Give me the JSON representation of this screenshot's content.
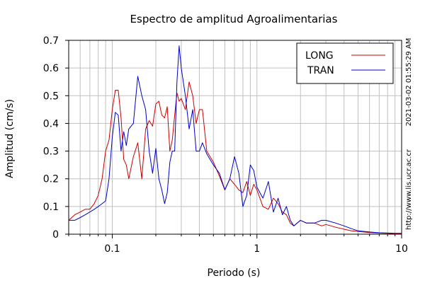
{
  "chart_data": {
    "type": "line",
    "title": "Espectro de amplitud Agroalimentarias",
    "xlabel": "Periodo (s)",
    "ylabel": "Amplitud (cm/s)",
    "xscale": "log",
    "xlim": [
      0.05,
      10
    ],
    "ylim": [
      0,
      0.7
    ],
    "x_ticks": [
      {
        "value": 0.1,
        "label": "0.1"
      },
      {
        "value": 1,
        "label": "1"
      },
      {
        "value": 10,
        "label": "10"
      }
    ],
    "y_ticks": [
      {
        "value": 0,
        "label": "0"
      },
      {
        "value": 0.1,
        "label": "0.1"
      },
      {
        "value": 0.2,
        "label": "0.2"
      },
      {
        "value": 0.3,
        "label": "0.3"
      },
      {
        "value": 0.4,
        "label": "0.4"
      },
      {
        "value": 0.5,
        "label": "0.5"
      },
      {
        "value": 0.6,
        "label": "0.6"
      },
      {
        "value": 0.7,
        "label": "0.7"
      }
    ],
    "grid": true,
    "legend_position": "top-right",
    "series": [
      {
        "name": "LONG",
        "color": "#cc0000",
        "x": [
          0.05,
          0.055,
          0.06,
          0.065,
          0.07,
          0.075,
          0.08,
          0.085,
          0.09,
          0.095,
          0.1,
          0.105,
          0.11,
          0.115,
          0.12,
          0.125,
          0.13,
          0.14,
          0.15,
          0.16,
          0.17,
          0.18,
          0.19,
          0.2,
          0.21,
          0.22,
          0.23,
          0.24,
          0.25,
          0.26,
          0.27,
          0.28,
          0.29,
          0.3,
          0.32,
          0.34,
          0.36,
          0.38,
          0.4,
          0.42,
          0.45,
          0.5,
          0.55,
          0.6,
          0.65,
          0.7,
          0.75,
          0.8,
          0.85,
          0.9,
          0.95,
          1.0,
          1.1,
          1.2,
          1.3,
          1.4,
          1.5,
          1.6,
          1.7,
          1.8,
          2.0,
          2.2,
          2.5,
          2.8,
          3.0,
          3.5,
          4.0,
          4.5,
          5.0,
          6.0,
          7.0,
          8.0,
          9.0,
          10.0
        ],
        "y": [
          0.05,
          0.07,
          0.08,
          0.09,
          0.09,
          0.11,
          0.14,
          0.2,
          0.3,
          0.34,
          0.45,
          0.52,
          0.52,
          0.42,
          0.27,
          0.25,
          0.2,
          0.28,
          0.33,
          0.2,
          0.38,
          0.41,
          0.39,
          0.47,
          0.48,
          0.43,
          0.42,
          0.46,
          0.3,
          0.34,
          0.43,
          0.51,
          0.48,
          0.49,
          0.45,
          0.55,
          0.5,
          0.4,
          0.45,
          0.45,
          0.3,
          0.26,
          0.21,
          0.16,
          0.2,
          0.18,
          0.16,
          0.15,
          0.19,
          0.14,
          0.18,
          0.16,
          0.1,
          0.09,
          0.13,
          0.11,
          0.08,
          0.07,
          0.04,
          0.03,
          0.05,
          0.04,
          0.04,
          0.03,
          0.035,
          0.025,
          0.018,
          0.012,
          0.01,
          0.006,
          0.004,
          0.003,
          0.002,
          0.002
        ]
      },
      {
        "name": "TRAN",
        "color": "#0000cc",
        "x": [
          0.05,
          0.055,
          0.06,
          0.065,
          0.07,
          0.075,
          0.08,
          0.085,
          0.09,
          0.095,
          0.1,
          0.105,
          0.11,
          0.115,
          0.12,
          0.125,
          0.13,
          0.14,
          0.15,
          0.16,
          0.17,
          0.18,
          0.19,
          0.2,
          0.21,
          0.22,
          0.23,
          0.24,
          0.25,
          0.26,
          0.27,
          0.28,
          0.29,
          0.3,
          0.32,
          0.34,
          0.36,
          0.38,
          0.4,
          0.42,
          0.45,
          0.5,
          0.55,
          0.6,
          0.65,
          0.7,
          0.75,
          0.8,
          0.85,
          0.9,
          0.95,
          1.0,
          1.1,
          1.2,
          1.3,
          1.4,
          1.5,
          1.6,
          1.7,
          1.8,
          2.0,
          2.2,
          2.5,
          2.8,
          3.0,
          3.5,
          4.0,
          4.5,
          5.0,
          6.0,
          7.0,
          8.0,
          9.0,
          10.0
        ],
        "y": [
          0.05,
          0.05,
          0.06,
          0.07,
          0.08,
          0.09,
          0.1,
          0.11,
          0.12,
          0.2,
          0.35,
          0.44,
          0.43,
          0.3,
          0.37,
          0.32,
          0.38,
          0.4,
          0.57,
          0.5,
          0.45,
          0.3,
          0.22,
          0.31,
          0.2,
          0.16,
          0.11,
          0.15,
          0.26,
          0.3,
          0.3,
          0.55,
          0.68,
          0.6,
          0.5,
          0.38,
          0.45,
          0.3,
          0.3,
          0.33,
          0.29,
          0.25,
          0.22,
          0.16,
          0.2,
          0.28,
          0.22,
          0.1,
          0.14,
          0.25,
          0.23,
          0.17,
          0.13,
          0.19,
          0.08,
          0.13,
          0.07,
          0.1,
          0.05,
          0.03,
          0.05,
          0.04,
          0.04,
          0.05,
          0.05,
          0.04,
          0.03,
          0.02,
          0.012,
          0.008,
          0.005,
          0.004,
          0.003,
          0.003
        ]
      }
    ]
  },
  "side_text": {
    "timestamp": "2021-03-02 01:55:29 AM",
    "url": "http://www.lis.ucr.ac.cr"
  }
}
